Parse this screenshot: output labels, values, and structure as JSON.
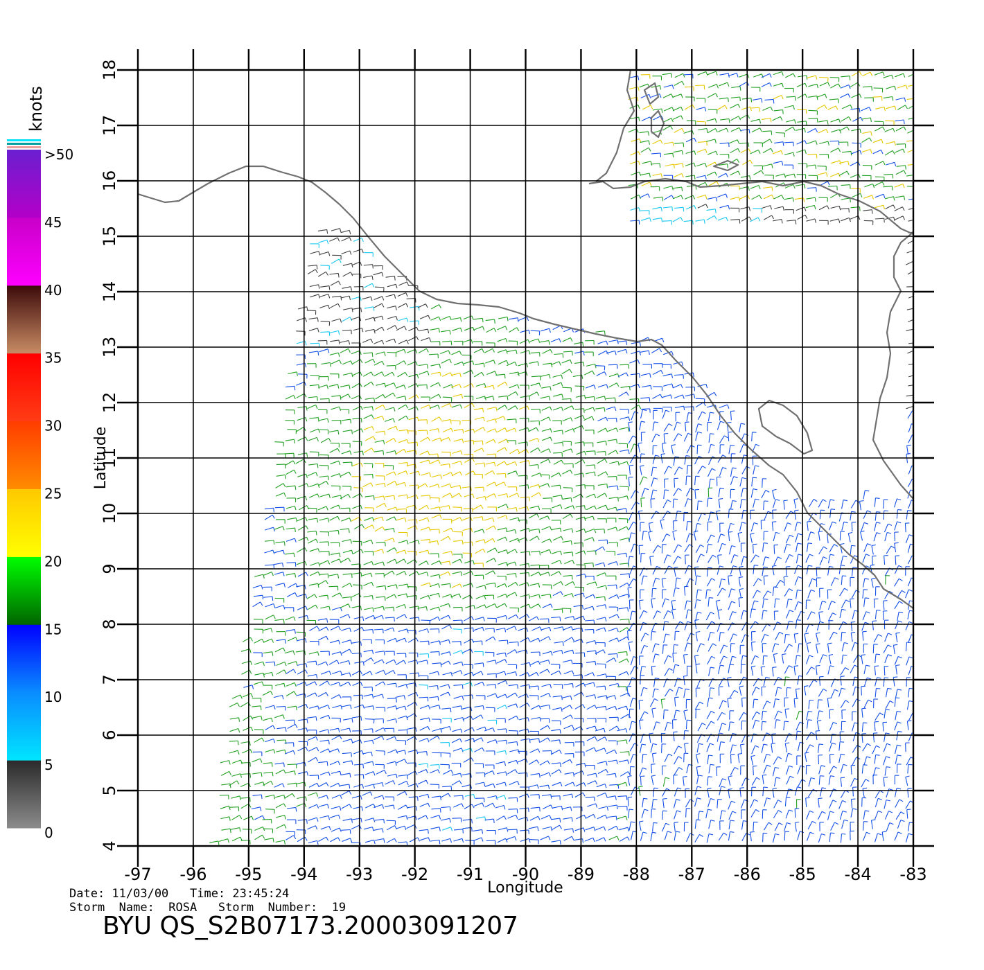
{
  "map": {
    "x_axis_label": "Longitude",
    "y_axis_label": "Latitude",
    "lon_range": [
      -97,
      -83
    ],
    "lat_range": [
      4,
      18
    ],
    "lon_ticks": [
      "-97",
      "-96",
      "-95",
      "-94",
      "-93",
      "-92",
      "-91",
      "-90",
      "-89",
      "-88",
      "-87",
      "-86",
      "-85",
      "-84",
      "-83"
    ],
    "lat_ticks": [
      "4",
      "5",
      "6",
      "7",
      "8",
      "9",
      "10",
      "11",
      "12",
      "13",
      "14",
      "15",
      "16",
      "17",
      "18"
    ],
    "grid": true,
    "coastline_color": "#707070"
  },
  "colorbar": {
    "unit_label": "knots",
    "labels": [
      ">50",
      "45",
      "40",
      "35",
      "30",
      "25",
      "20",
      "15",
      "10",
      "5",
      "0"
    ],
    "bands": [
      {
        "from": 0,
        "to": 5,
        "colors": [
          "#8c8c8c",
          "#2a2a2a"
        ]
      },
      {
        "from": 5,
        "to": 10,
        "colors": [
          "#00e5ff",
          "#0a8cff"
        ]
      },
      {
        "from": 10,
        "to": 15,
        "colors": [
          "#0a8cff",
          "#0000ff"
        ]
      },
      {
        "from": 15,
        "to": 20,
        "colors": [
          "#006400",
          "#00ff00"
        ]
      },
      {
        "from": 20,
        "to": 25,
        "colors": [
          "#ffff00",
          "#ffc800"
        ]
      },
      {
        "from": 25,
        "to": 30,
        "colors": [
          "#ff8c00",
          "#ff3c00"
        ]
      },
      {
        "from": 30,
        "to": 35,
        "colors": [
          "#ff3c14",
          "#ff0000"
        ]
      },
      {
        "from": 35,
        "to": 40,
        "colors": [
          "#c88c64",
          "#3c0a0a"
        ]
      },
      {
        "from": 40,
        "to": 45,
        "colors": [
          "#ff00ff",
          "#c800c8"
        ]
      },
      {
        "from": 45,
        "to": 50,
        "colors": [
          "#b400c8",
          "#6a1fd0"
        ]
      }
    ]
  },
  "footer": {
    "date_line": "Date: 11/03/00   Time: 23:45:24",
    "storm_line": "Storm  Name:  ROSA   Storm  Number:  19",
    "title": "BYU  QS_S2B07173.20003091207"
  }
}
